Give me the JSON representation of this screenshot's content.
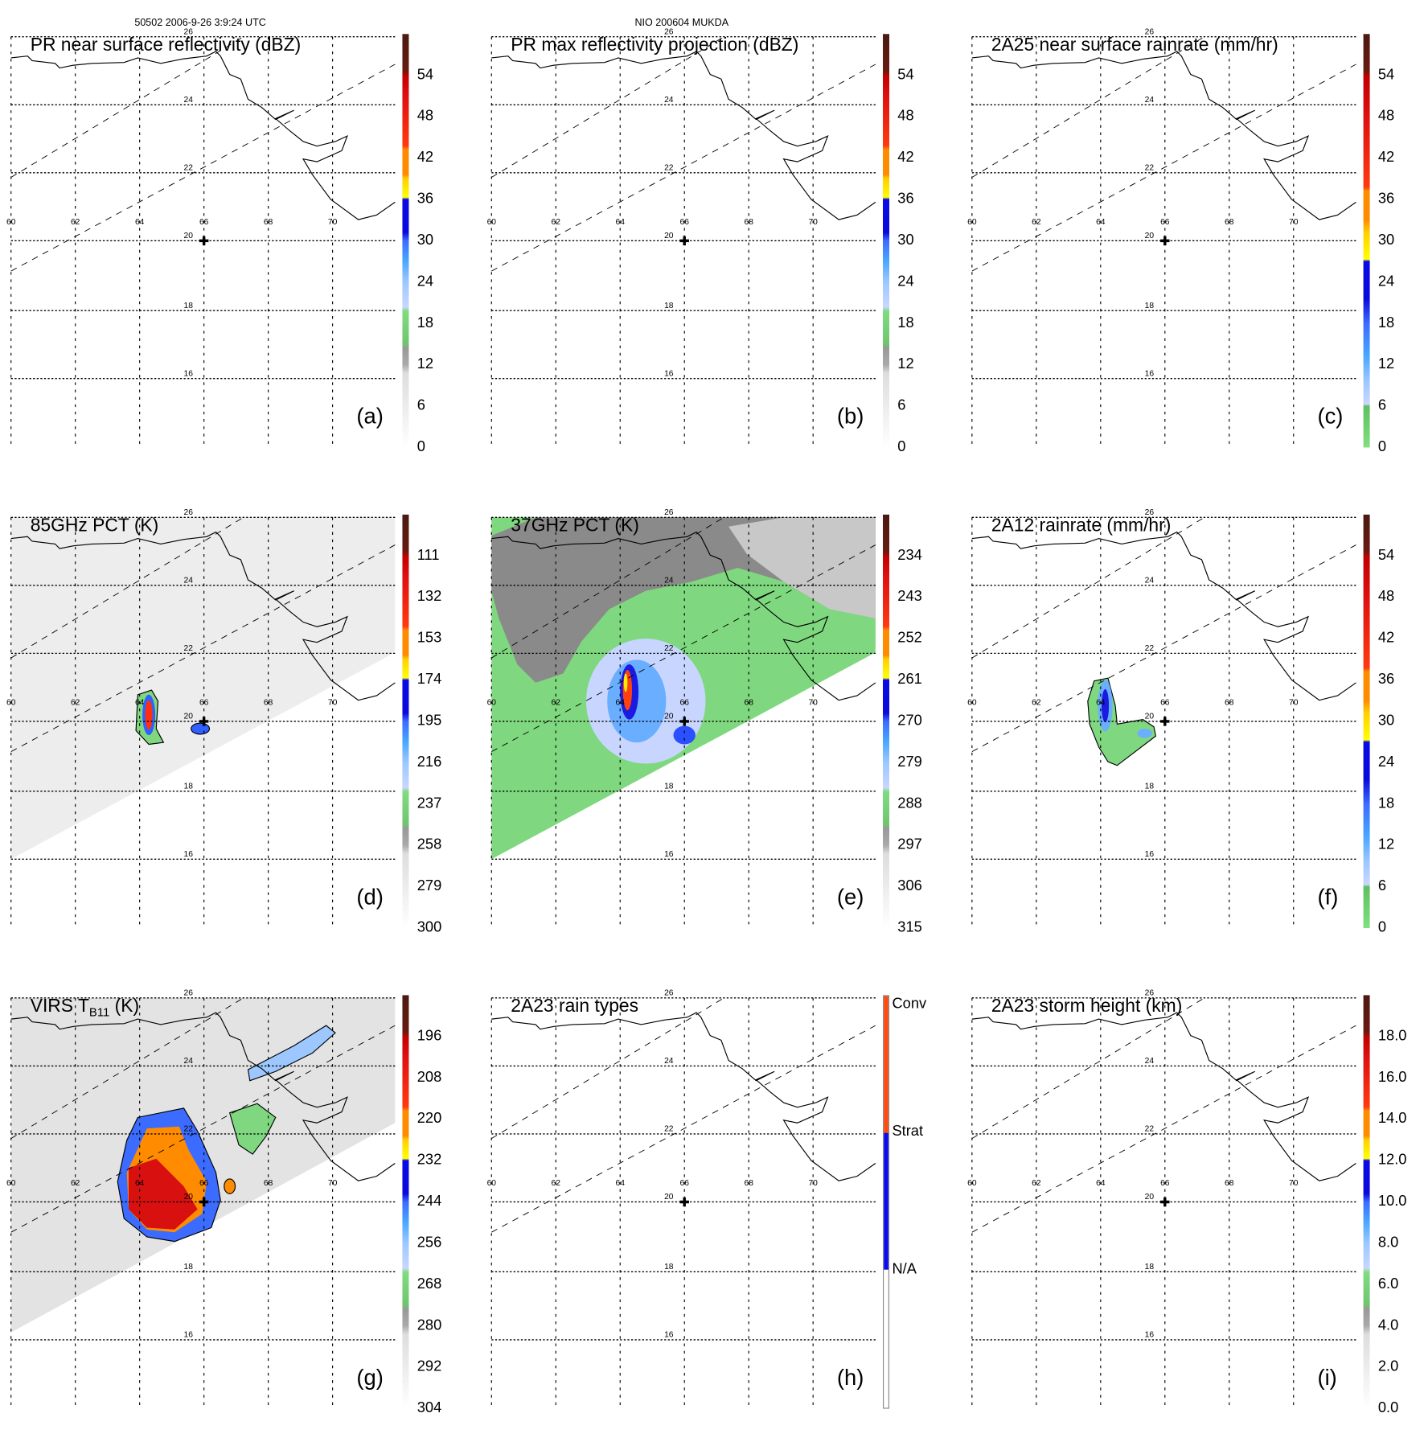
{
  "header": {
    "orbit_time": "50502 2006-9-26 3:9:24 UTC",
    "storm": "NIO 200604 MUKDA"
  },
  "map": {
    "lon_labels": [
      "60",
      "62",
      "64",
      "66",
      "68",
      "70"
    ],
    "lat_labels": [
      "26",
      "24",
      "22",
      "20",
      "18",
      "16"
    ]
  },
  "colors": {
    "rain_green": "#7fd87f",
    "swath_gray": "#e8e8e8",
    "conv": "#ff4a10",
    "strat": "#0a0af0"
  },
  "chart_data": [
    {
      "type": "heatmap",
      "panel": "a",
      "title": "PR near surface reflectivity (dBZ)",
      "letter": "(a)",
      "colorbar_labels": [
        "0",
        "6",
        "12",
        "18",
        "24",
        "30",
        "36",
        "42",
        "48",
        "54"
      ],
      "xlim": [
        60,
        72
      ],
      "ylim": [
        15,
        26
      ]
    },
    {
      "type": "heatmap",
      "panel": "b",
      "title": "PR max reflectivity projection (dBZ)",
      "letter": "(b)",
      "colorbar_labels": [
        "0",
        "6",
        "12",
        "18",
        "24",
        "30",
        "36",
        "42",
        "48",
        "54"
      ],
      "xlim": [
        60,
        72
      ],
      "ylim": [
        15,
        26
      ]
    },
    {
      "type": "heatmap",
      "panel": "c",
      "title": "2A25 near surface rainrate (mm/hr)",
      "letter": "(c)",
      "colorbar_labels": [
        "0",
        "6",
        "12",
        "18",
        "24",
        "30",
        "36",
        "42",
        "48",
        "54"
      ],
      "xlim": [
        60,
        72
      ],
      "ylim": [
        15,
        26
      ]
    },
    {
      "type": "heatmap",
      "panel": "d",
      "title": "85GHz PCT (K)",
      "letter": "(d)",
      "colorbar_labels": [
        "300",
        "279",
        "258",
        "237",
        "216",
        "195",
        "174",
        "153",
        "132",
        "111"
      ],
      "xlim": [
        60,
        72
      ],
      "ylim": [
        15,
        26
      ]
    },
    {
      "type": "heatmap",
      "panel": "e",
      "title": "37GHz PCT (K)",
      "letter": "(e)",
      "colorbar_labels": [
        "315",
        "306",
        "297",
        "288",
        "279",
        "270",
        "261",
        "252",
        "243",
        "234"
      ],
      "xlim": [
        60,
        72
      ],
      "ylim": [
        15,
        26
      ]
    },
    {
      "type": "heatmap",
      "panel": "f",
      "title": "2A12 rainrate (mm/hr)",
      "letter": "(f)",
      "colorbar_labels": [
        "0",
        "6",
        "12",
        "18",
        "24",
        "30",
        "36",
        "42",
        "48",
        "54"
      ],
      "xlim": [
        60,
        72
      ],
      "ylim": [
        15,
        26
      ]
    },
    {
      "type": "heatmap",
      "panel": "g",
      "title": "VIRS T",
      "title_sub": "B11",
      "title_end": " (K)",
      "letter": "(g)",
      "colorbar_labels": [
        "304",
        "292",
        "280",
        "268",
        "256",
        "244",
        "232",
        "220",
        "208",
        "196"
      ],
      "xlim": [
        60,
        72
      ],
      "ylim": [
        15,
        26
      ]
    },
    {
      "type": "heatmap",
      "panel": "h",
      "title": "2A23 rain types",
      "letter": "(h)",
      "colorbar_labels": [
        "N/A",
        "Strat",
        "Conv"
      ],
      "xlim": [
        60,
        72
      ],
      "ylim": [
        15,
        26
      ]
    },
    {
      "type": "heatmap",
      "panel": "i",
      "title": "2A23 storm height (km)",
      "letter": "(i)",
      "colorbar_labels": [
        "0.0",
        "2.0",
        "4.0",
        "6.0",
        "8.0",
        "10.0",
        "12.0",
        "14.0",
        "16.0",
        "18.0"
      ],
      "xlim": [
        60,
        72
      ],
      "ylim": [
        15,
        26
      ]
    }
  ]
}
